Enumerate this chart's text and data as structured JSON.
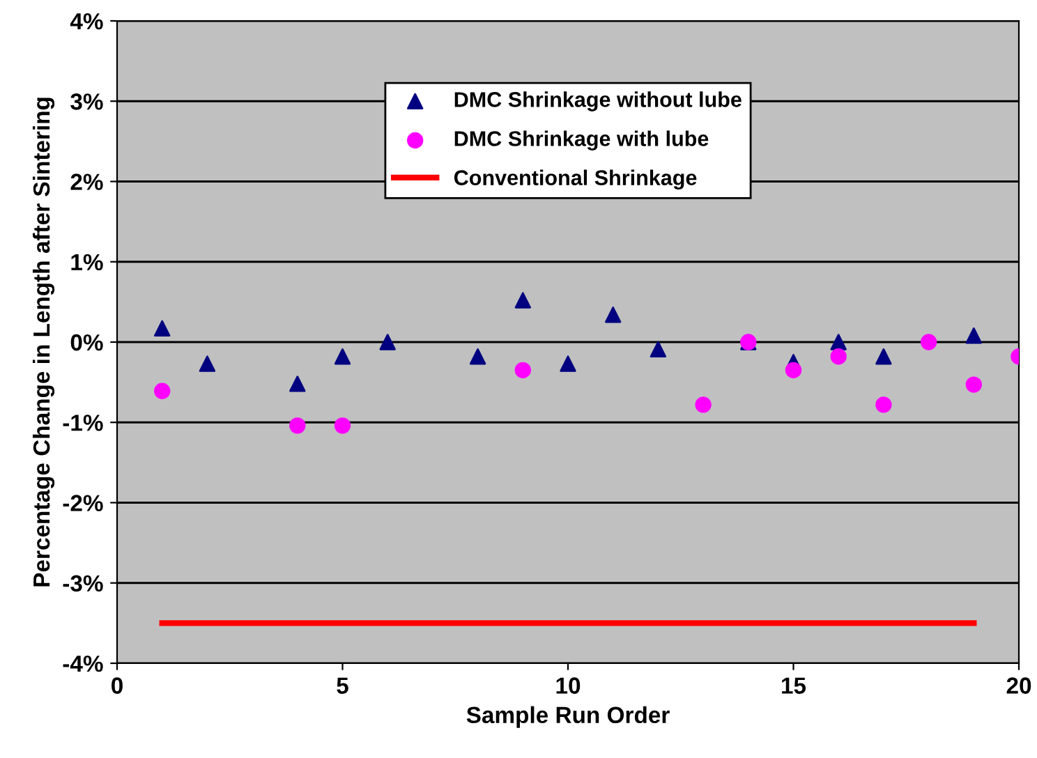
{
  "chart_data": {
    "type": "scatter",
    "xlabel": "Sample Run Order",
    "ylabel": "Percentage Change in Length after Sintering",
    "xlim": [
      0,
      20
    ],
    "xticks": [
      0,
      5,
      10,
      15,
      20
    ],
    "ylim": [
      -4,
      4
    ],
    "yticks": [
      {
        "value": -4,
        "label": "-4%"
      },
      {
        "value": -3,
        "label": "-3%"
      },
      {
        "value": -2,
        "label": "-2%"
      },
      {
        "value": -1,
        "label": "-1%"
      },
      {
        "value": 0,
        "label": "0%"
      },
      {
        "value": 1,
        "label": "1%"
      },
      {
        "value": 2,
        "label": "2%"
      },
      {
        "value": 3,
        "label": "3%"
      },
      {
        "value": 4,
        "label": "4%"
      }
    ],
    "grid": "y",
    "legend": "top",
    "series": [
      {
        "name": "DMC Shrinkage without lube",
        "marker": "triangle",
        "color": "#000080",
        "x": [
          1,
          2,
          4,
          5,
          6,
          8,
          9,
          10,
          11,
          12,
          14,
          15,
          16,
          17,
          19
        ],
        "values": [
          0.17,
          -0.27,
          -0.52,
          -0.18,
          0,
          -0.18,
          0.52,
          -0.27,
          0.34,
          -0.09,
          0,
          -0.25,
          0,
          -0.18,
          0.08
        ]
      },
      {
        "name": "DMC Shrinkage with lube",
        "marker": "circle",
        "color": "#ff00ff",
        "x": [
          1,
          4,
          5,
          9,
          13,
          14,
          15,
          16,
          17,
          18,
          19,
          20
        ],
        "values": [
          -0.61,
          -1.04,
          -1.04,
          -0.35,
          -0.78,
          0,
          -0.35,
          -0.18,
          -0.78,
          0,
          -0.53,
          -0.18
        ]
      },
      {
        "name": "Conventional Shrinkage",
        "type": "line",
        "marker": "none",
        "color": "#ff0000",
        "x": [
          1,
          19
        ],
        "values": [
          -3.5,
          -3.5
        ]
      }
    ]
  }
}
